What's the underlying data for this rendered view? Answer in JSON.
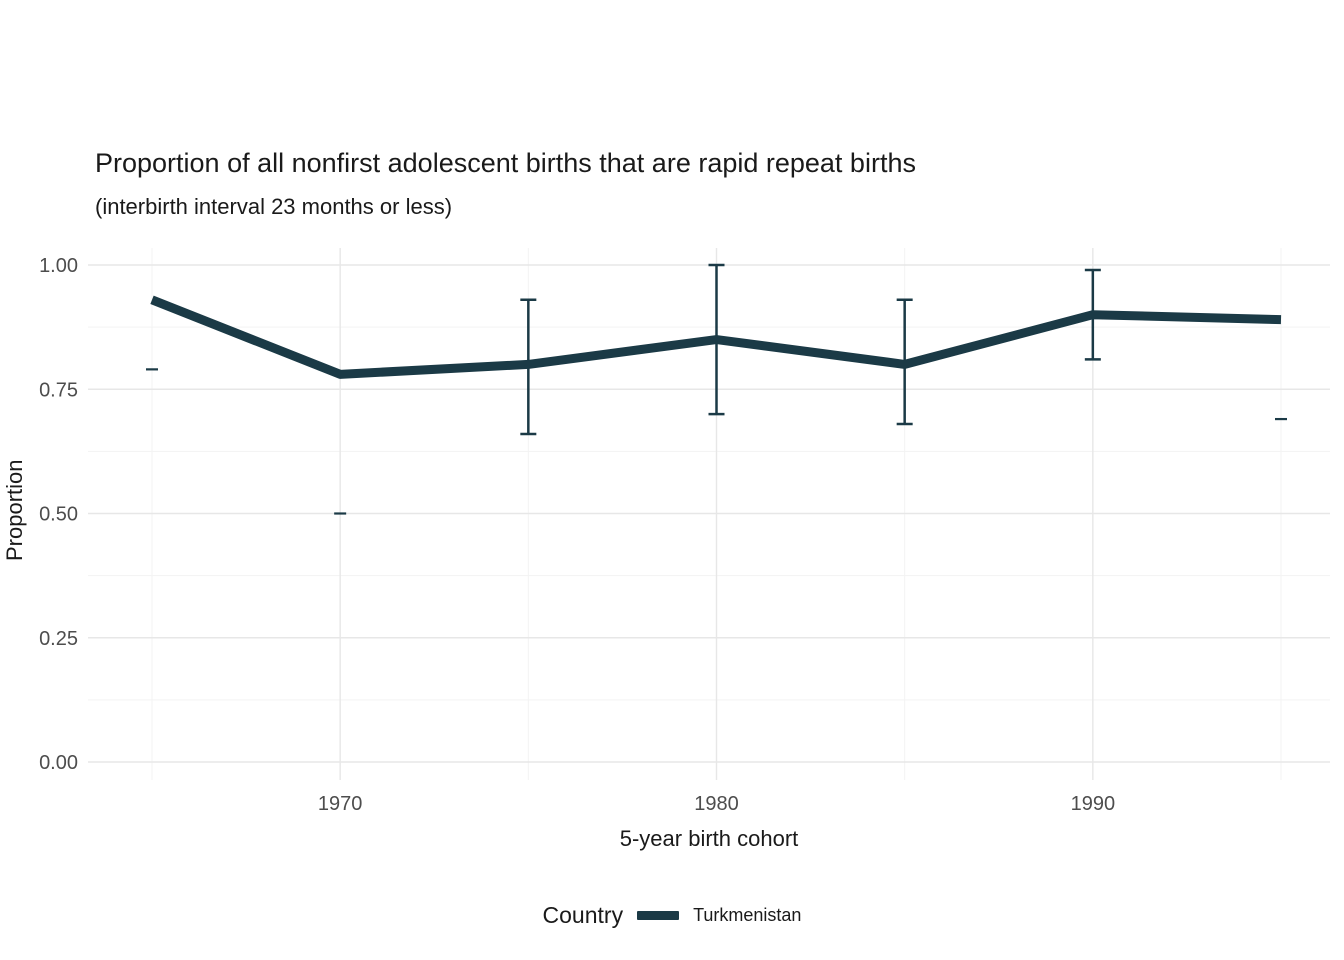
{
  "chart_data": {
    "type": "line",
    "title": "Proportion of all nonfirst adolescent births that are rapid repeat births",
    "subtitle": "(interbirth interval 23 months or less)",
    "xlabel": "5-year birth cohort",
    "ylabel": "Proportion",
    "x_ticks": [
      1970,
      1980,
      1990
    ],
    "y_ticks": [
      {
        "value": 0.0,
        "label": "0.00"
      },
      {
        "value": 0.25,
        "label": "0.25"
      },
      {
        "value": 0.5,
        "label": "0.50"
      },
      {
        "value": 0.75,
        "label": "0.75"
      },
      {
        "value": 1.0,
        "label": "1.00"
      }
    ],
    "y_minor_ticks": [
      0.125,
      0.375,
      0.625,
      0.875
    ],
    "x_minor_ticks": [
      1965,
      1975,
      1985,
      1995
    ],
    "xlim": [
      1965,
      1995
    ],
    "ylim": [
      0,
      1.0
    ],
    "grid": true,
    "legend": {
      "position": "bottom",
      "title": "Country",
      "entries": [
        {
          "label": "Turkmenistan",
          "color": "#1b3a46"
        }
      ]
    },
    "series": [
      {
        "name": "Turkmenistan",
        "points": [
          {
            "year": 1965,
            "value": 0.93,
            "ci_low": 0.79,
            "ci_high": null
          },
          {
            "year": 1970,
            "value": 0.78,
            "ci_low": 0.5,
            "ci_high": null
          },
          {
            "year": 1975,
            "value": 0.8,
            "ci_low": 0.66,
            "ci_high": 0.93
          },
          {
            "year": 1980,
            "value": 0.85,
            "ci_low": 0.7,
            "ci_high": 1.0
          },
          {
            "year": 1985,
            "value": 0.8,
            "ci_low": 0.68,
            "ci_high": 0.93
          },
          {
            "year": 1990,
            "value": 0.9,
            "ci_low": 0.81,
            "ci_high": 0.99
          },
          {
            "year": 1995,
            "value": 0.89,
            "ci_low": 0.69,
            "ci_high": null
          }
        ]
      }
    ],
    "colors": {
      "line": "#1b3a46",
      "grid_major": "#e7e7e7",
      "grid_minor": "#f3f3f3",
      "tick_text": "#4d4d4d",
      "text": "#1a1a1a",
      "background": "#ffffff"
    }
  }
}
